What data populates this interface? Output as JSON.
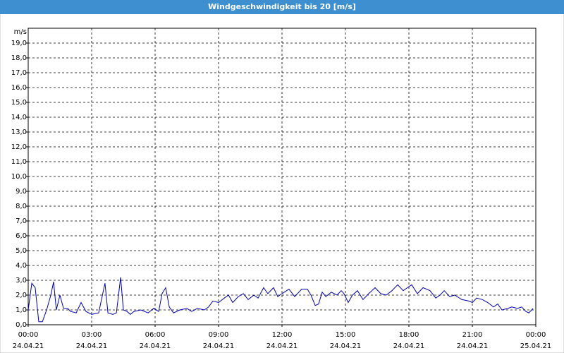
{
  "chart_data": {
    "type": "line",
    "title": "Windgeschwindigkeit bis 20 [m/s]",
    "y_unit": "m/s",
    "color": "#0000b0",
    "grid": true,
    "xlim": [
      0,
      24
    ],
    "xticks": [
      {
        "value": 0,
        "label": "00:00"
      },
      {
        "value": 3,
        "label": "03:00"
      },
      {
        "value": 6,
        "label": "06:00"
      },
      {
        "value": 9,
        "label": "09:00"
      },
      {
        "value": 12,
        "label": "12:00"
      },
      {
        "value": 15,
        "label": "15:00"
      },
      {
        "value": 18,
        "label": "18:00"
      },
      {
        "value": 21,
        "label": "21:00"
      },
      {
        "value": 24,
        "label": "00:00"
      }
    ],
    "xtick_dates": [
      "24.04.21",
      "24.04.21",
      "24.04.21",
      "24.04.21",
      "24.04.21",
      "24.04.21",
      "24.04.21",
      "24.04.21",
      "25.04.21"
    ],
    "ylim": [
      0,
      20
    ],
    "yticks": [
      {
        "value": 0,
        "label": "0,0"
      },
      {
        "value": 1,
        "label": "1,0"
      },
      {
        "value": 2,
        "label": "2,0"
      },
      {
        "value": 3,
        "label": "3,0"
      },
      {
        "value": 4,
        "label": "4,0"
      },
      {
        "value": 5,
        "label": "5,0"
      },
      {
        "value": 6,
        "label": "6,0"
      },
      {
        "value": 7,
        "label": "7,0"
      },
      {
        "value": 8,
        "label": "8,0"
      },
      {
        "value": 9,
        "label": "9,0"
      },
      {
        "value": 10,
        "label": "10,0"
      },
      {
        "value": 11,
        "label": "11,0"
      },
      {
        "value": 12,
        "label": "12,0"
      },
      {
        "value": 13,
        "label": "13,0"
      },
      {
        "value": 14,
        "label": "14,0"
      },
      {
        "value": 15,
        "label": "15,0"
      },
      {
        "value": 16,
        "label": "16,0"
      },
      {
        "value": 17,
        "label": "17,0"
      },
      {
        "value": 18,
        "label": "18,0"
      },
      {
        "value": 19,
        "label": "19,0"
      }
    ],
    "x": [
      0,
      0.17,
      0.33,
      0.5,
      0.67,
      0.87,
      1.07,
      1.2,
      1.33,
      1.5,
      1.67,
      1.87,
      2,
      2.27,
      2.5,
      2.73,
      3,
      3.33,
      3.63,
      3.77,
      4,
      4.17,
      4.37,
      4.5,
      4.67,
      4.83,
      5,
      5.33,
      5.67,
      5.93,
      6.17,
      6.33,
      6.5,
      6.67,
      6.87,
      7.17,
      7.5,
      7.73,
      8,
      8.33,
      8.53,
      8.73,
      9,
      9.27,
      9.47,
      9.67,
      9.93,
      10.17,
      10.4,
      10.67,
      10.87,
      11.13,
      11.33,
      11.6,
      11.8,
      12,
      12.33,
      12.6,
      12.93,
      13.2,
      13.37,
      13.57,
      13.73,
      13.9,
      14.07,
      14.33,
      14.6,
      14.8,
      14.93,
      15.13,
      15.33,
      15.57,
      15.83,
      16.1,
      16.4,
      16.67,
      16.93,
      17.2,
      17.47,
      17.73,
      17.93,
      18.13,
      18.4,
      18.67,
      19,
      19.27,
      19.47,
      19.67,
      19.93,
      20.17,
      20.5,
      20.83,
      21,
      21.2,
      21.47,
      21.73,
      22,
      22.2,
      22.4,
      22.67,
      22.87,
      23.13,
      23.33,
      23.53,
      23.67,
      23.87
    ],
    "values": [
      1.0,
      2.8,
      2.5,
      0.2,
      0.2,
      1.0,
      2.0,
      2.9,
      1.0,
      2.0,
      1.1,
      1.1,
      0.9,
      0.8,
      1.5,
      0.9,
      0.7,
      0.8,
      2.8,
      0.8,
      0.7,
      0.8,
      3.2,
      1.0,
      0.9,
      0.7,
      0.9,
      1.0,
      0.8,
      1.1,
      0.9,
      2.1,
      2.5,
      1.2,
      0.8,
      1.0,
      1.1,
      0.9,
      1.1,
      1.0,
      1.2,
      1.6,
      1.5,
      1.8,
      2.0,
      1.5,
      1.9,
      2.1,
      1.7,
      2.0,
      1.8,
      2.5,
      2.1,
      2.5,
      1.9,
      2.1,
      2.4,
      1.9,
      2.4,
      2.4,
      2.0,
      1.3,
      1.4,
      2.2,
      1.9,
      2.2,
      2.0,
      2.3,
      2.1,
      1.5,
      2.0,
      2.3,
      1.7,
      2.1,
      2.5,
      2.1,
      2.0,
      2.3,
      2.7,
      2.3,
      2.5,
      2.7,
      2.1,
      2.5,
      2.3,
      1.8,
      2.0,
      2.3,
      1.9,
      2.0,
      1.7,
      1.6,
      1.5,
      1.8,
      1.7,
      1.5,
      1.2,
      1.4,
      1.0,
      1.1,
      1.2,
      1.1,
      1.2,
      0.9,
      0.8,
      1.1
    ]
  }
}
